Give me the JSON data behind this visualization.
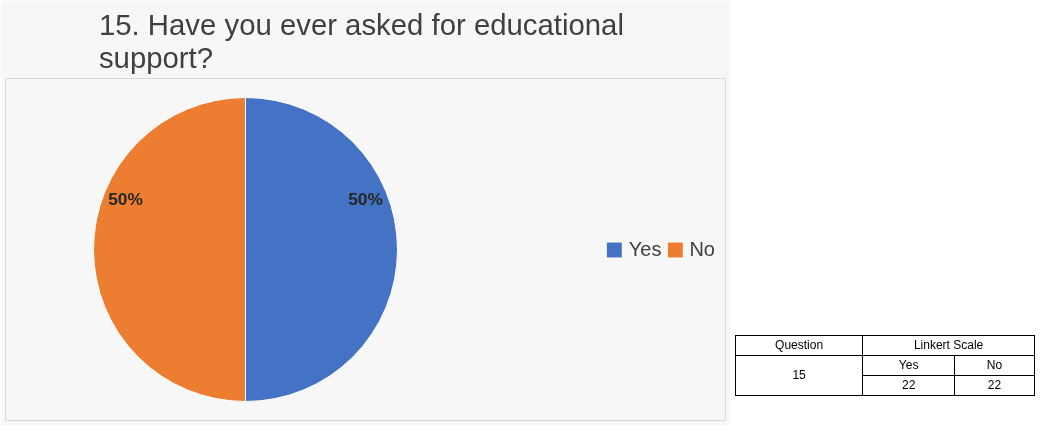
{
  "chart_data": {
    "type": "pie",
    "title": "15.  Have you ever asked for educational support?",
    "categories": [
      "Yes",
      "No"
    ],
    "values": [
      50,
      50
    ],
    "colors": [
      "#4472c4",
      "#ed7d31"
    ],
    "value_labels": [
      "50%",
      "50%"
    ],
    "legend": "right",
    "annotations": [
      "Question",
      "Linkert Scale",
      "15",
      "Yes",
      "No",
      "22",
      "22"
    ]
  }
}
